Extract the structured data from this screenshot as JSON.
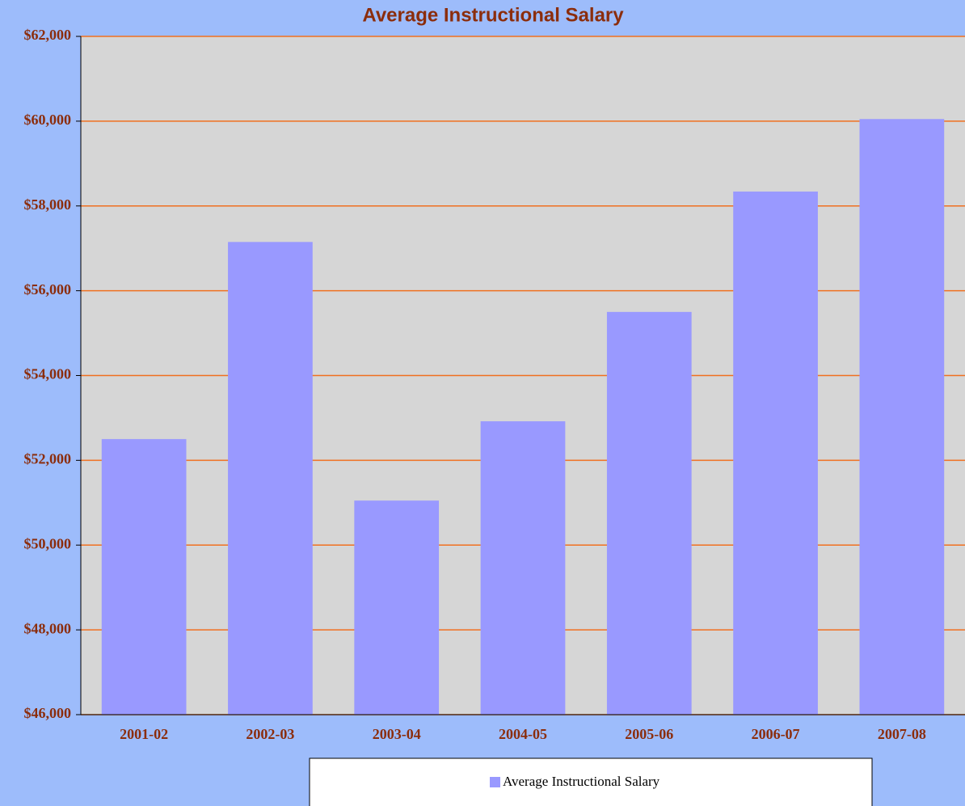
{
  "chart_data": {
    "type": "bar",
    "title": "Average Instructional Salary",
    "categories": [
      "2001-02",
      "2002-03",
      "2003-04",
      "2004-05",
      "2005-06",
      "2006-07",
      "2007-08"
    ],
    "series": [
      {
        "name": "Average Instructional Salary",
        "color": "#9999ff",
        "values": [
          52500,
          57150,
          51050,
          52920,
          55500,
          58340,
          60050
        ]
      }
    ],
    "ylim": [
      46000,
      62000
    ],
    "yticks": [
      {
        "value": 46000,
        "label": "$46,000"
      },
      {
        "value": 48000,
        "label": "$48,000"
      },
      {
        "value": 50000,
        "label": "$50,000"
      },
      {
        "value": 52000,
        "label": "$52,000"
      },
      {
        "value": 54000,
        "label": "$54,000"
      },
      {
        "value": 56000,
        "label": "$56,000"
      },
      {
        "value": 58000,
        "label": "$58,000"
      },
      {
        "value": 60000,
        "label": "$60,000"
      },
      {
        "value": 62000,
        "label": "$62,000"
      }
    ],
    "grid": true,
    "grid_color": "#f07020",
    "legend": "bottom"
  }
}
